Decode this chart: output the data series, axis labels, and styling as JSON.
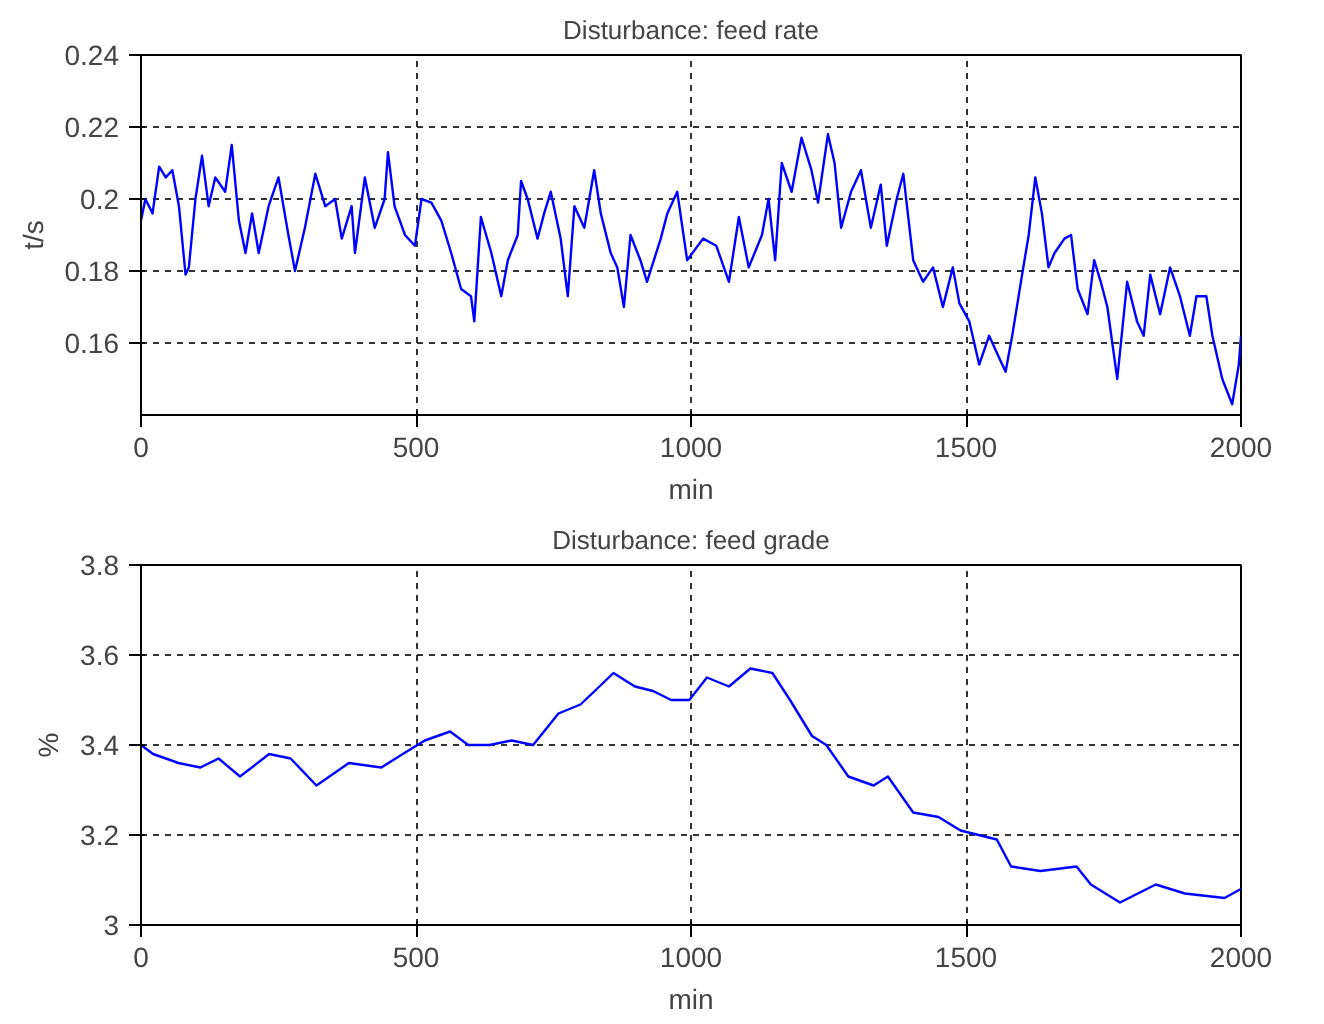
{
  "chart_data": [
    {
      "type": "line",
      "title": "Disturbance: feed rate",
      "xlabel": "min",
      "ylabel": "t/s",
      "color": "#0000ff",
      "grid": true,
      "xlim": [
        0,
        2000
      ],
      "ylim": [
        0.14,
        0.24
      ],
      "xticks": [
        0,
        500,
        1000,
        1500,
        2000
      ],
      "yticks": [
        0.16,
        0.18,
        0.2,
        0.22,
        0.24
      ],
      "x": [
        0,
        8,
        21,
        33,
        45,
        57,
        69,
        81,
        87,
        99,
        111,
        123,
        135,
        153,
        165,
        178,
        190,
        202,
        214,
        232,
        250,
        268,
        280,
        298,
        317,
        335,
        353,
        365,
        383,
        389,
        407,
        425,
        443,
        449,
        461,
        480,
        498,
        510,
        528,
        546,
        564,
        582,
        600,
        606,
        618,
        637,
        655,
        667,
        685,
        691,
        703,
        721,
        733,
        745,
        763,
        776,
        788,
        806,
        824,
        836,
        854,
        866,
        878,
        890,
        908,
        920,
        945,
        957,
        975,
        993,
        1022,
        1046,
        1069,
        1087,
        1105,
        1129,
        1141,
        1153,
        1165,
        1183,
        1201,
        1219,
        1231,
        1249,
        1261,
        1273,
        1291,
        1309,
        1327,
        1345,
        1356,
        1374,
        1386,
        1404,
        1422,
        1440,
        1458,
        1476,
        1488,
        1506,
        1524,
        1542,
        1560,
        1572,
        1584,
        1602,
        1614,
        1626,
        1638,
        1650,
        1661,
        1679,
        1691,
        1703,
        1721,
        1733,
        1745,
        1757,
        1775,
        1793,
        1811,
        1823,
        1835,
        1853,
        1871,
        1889,
        1907,
        1919,
        1937,
        1948,
        1966,
        1984,
        1996,
        2000
      ],
      "values": [
        0.194,
        0.2,
        0.196,
        0.209,
        0.206,
        0.208,
        0.198,
        0.179,
        0.181,
        0.2,
        0.212,
        0.198,
        0.206,
        0.202,
        0.215,
        0.194,
        0.185,
        0.196,
        0.185,
        0.198,
        0.206,
        0.19,
        0.18,
        0.192,
        0.207,
        0.198,
        0.2,
        0.189,
        0.198,
        0.185,
        0.206,
        0.192,
        0.2,
        0.213,
        0.198,
        0.19,
        0.187,
        0.2,
        0.199,
        0.194,
        0.185,
        0.175,
        0.173,
        0.166,
        0.195,
        0.185,
        0.173,
        0.183,
        0.19,
        0.205,
        0.2,
        0.189,
        0.196,
        0.202,
        0.189,
        0.173,
        0.198,
        0.192,
        0.208,
        0.196,
        0.185,
        0.181,
        0.17,
        0.19,
        0.183,
        0.177,
        0.189,
        0.196,
        0.202,
        0.183,
        0.189,
        0.187,
        0.177,
        0.195,
        0.181,
        0.19,
        0.2,
        0.183,
        0.21,
        0.202,
        0.217,
        0.208,
        0.199,
        0.218,
        0.21,
        0.192,
        0.202,
        0.208,
        0.192,
        0.204,
        0.187,
        0.2,
        0.207,
        0.183,
        0.177,
        0.181,
        0.17,
        0.181,
        0.171,
        0.166,
        0.154,
        0.162,
        0.156,
        0.152,
        0.162,
        0.179,
        0.19,
        0.206,
        0.196,
        0.181,
        0.185,
        0.189,
        0.19,
        0.175,
        0.168,
        0.183,
        0.177,
        0.17,
        0.15,
        0.177,
        0.166,
        0.162,
        0.179,
        0.168,
        0.181,
        0.173,
        0.162,
        0.173,
        0.173,
        0.162,
        0.15,
        0.143,
        0.154,
        0.162
      ]
    },
    {
      "type": "line",
      "title": "Disturbance: feed grade",
      "xlabel": "min",
      "ylabel": "%",
      "color": "#0000ff",
      "grid": true,
      "xlim": [
        0,
        2000
      ],
      "ylim": [
        3,
        3.8
      ],
      "xticks": [
        0,
        500,
        1000,
        1500,
        2000
      ],
      "yticks": [
        3,
        3.2,
        3.4,
        3.6,
        3.8
      ],
      "x": [
        0,
        22,
        68,
        108,
        141,
        180,
        233,
        272,
        319,
        378,
        437,
        476,
        516,
        562,
        595,
        634,
        674,
        713,
        759,
        799,
        825,
        859,
        898,
        931,
        964,
        997,
        1029,
        1069,
        1108,
        1148,
        1180,
        1220,
        1246,
        1286,
        1332,
        1358,
        1404,
        1450,
        1490,
        1523,
        1556,
        1582,
        1635,
        1701,
        1727,
        1780,
        1845,
        1898,
        1970,
        2000
      ],
      "values": [
        3.4,
        3.38,
        3.36,
        3.35,
        3.37,
        3.33,
        3.38,
        3.37,
        3.31,
        3.36,
        3.35,
        3.38,
        3.41,
        3.43,
        3.4,
        3.4,
        3.41,
        3.4,
        3.47,
        3.49,
        3.52,
        3.56,
        3.53,
        3.52,
        3.5,
        3.5,
        3.55,
        3.53,
        3.57,
        3.56,
        3.5,
        3.42,
        3.4,
        3.33,
        3.31,
        3.33,
        3.25,
        3.24,
        3.21,
        3.2,
        3.19,
        3.13,
        3.12,
        3.13,
        3.09,
        3.05,
        3.09,
        3.07,
        3.06,
        3.08
      ]
    }
  ]
}
